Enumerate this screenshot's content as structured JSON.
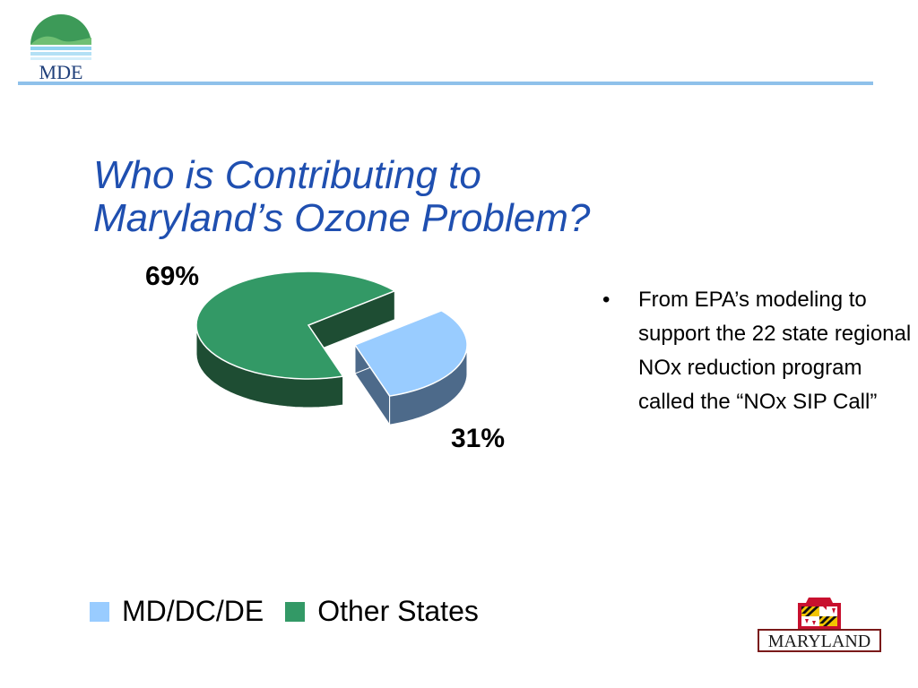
{
  "header": {
    "org_logo_text": "MDE",
    "logo_icon": "mde-hills-logo-icon"
  },
  "slide": {
    "title_line1": "Who is Contributing to",
    "title_line2": "Maryland’s Ozone Problem?",
    "bullet_marker": "•",
    "bullets": [
      "From EPA’s modeling to support the 22 state regional NOx reduction program called the “NOx SIP Call”"
    ]
  },
  "chart_data": {
    "type": "pie",
    "title": "",
    "slices": [
      {
        "name": "MD/DC/DE",
        "value": 31,
        "label": "31%",
        "color": "#99ccff"
      },
      {
        "name": "Other States",
        "value": 69,
        "label": "69%",
        "color": "#339966"
      }
    ],
    "three_d": true,
    "exploded": true,
    "legend_placement": "bottom"
  },
  "footer": {
    "state_logo_text": "MARYLAND",
    "state_logo_icon": "maryland-flag-crest-icon"
  },
  "colors": {
    "title": "#1f4fb0",
    "header_rule": "#8fc1ea",
    "md_slice": "#99ccff",
    "md_slice_side": "#4d6a8a",
    "other_slice": "#339966",
    "other_slice_side": "#1e4d33"
  }
}
